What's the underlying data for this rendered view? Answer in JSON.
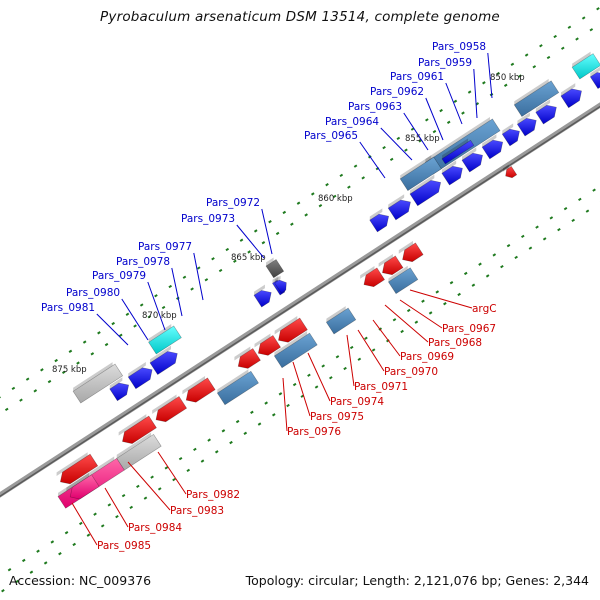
{
  "title": "Pyrobaculum arsenaticum DSM 13514, complete genome",
  "footer": {
    "accession": "Accession: NC_009376",
    "summary": "Topology: circular; Length: 2,121,076 bp; Genes: 2,344"
  },
  "colors": {
    "forward": "#0000ee",
    "reverse": "#ee0000",
    "cds": "#4a84b8",
    "rna": "#00e5e5",
    "pseudo": "#b8b8b8",
    "pink": "#ff2d8a",
    "dark": "#555555",
    "axis": "#7a7a7a",
    "tick": "#1f7a1f"
  },
  "kbp_ticks": [
    "850 kbp",
    "855 kbp",
    "860 kbp",
    "865 kbp",
    "870 kbp",
    "875 kbp"
  ],
  "labels_top": [
    "Pars_0958",
    "Pars_0959",
    "Pars_0961",
    "Pars_0962",
    "Pars_0963",
    "Pars_0964",
    "Pars_0965",
    "Pars_0972",
    "Pars_0973",
    "Pars_0977",
    "Pars_0978",
    "Pars_0979",
    "Pars_0980",
    "Pars_0981"
  ],
  "labels_bottom": [
    "argC",
    "Pars_0967",
    "Pars_0968",
    "Pars_0969",
    "Pars_0970",
    "Pars_0971",
    "Pars_0974",
    "Pars_0975",
    "Pars_0976",
    "Pars_0982",
    "Pars_0983",
    "Pars_0984",
    "Pars_0985"
  ]
}
